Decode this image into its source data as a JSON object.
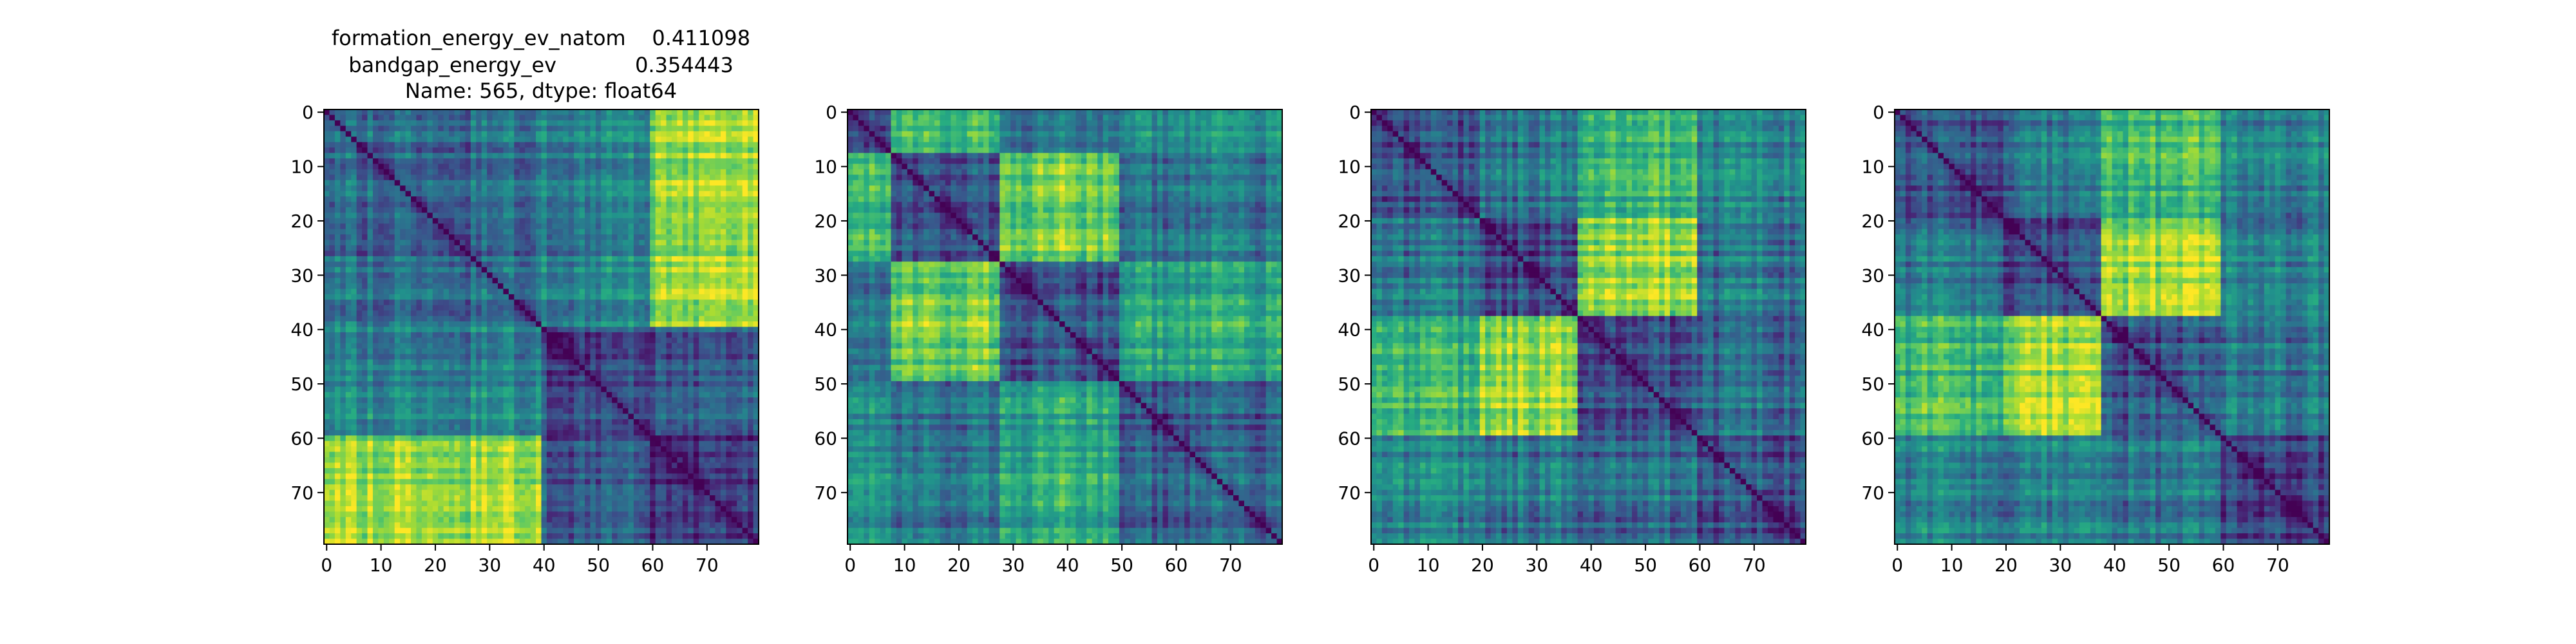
{
  "chart_data": {
    "type": "heatmap",
    "title": [
      "formation_energy_ev_natom    0.411098",
      "bandgap_energy_ev            0.354443",
      "Name: 565, dtype: float64"
    ],
    "xlabel": "",
    "ylabel": "",
    "grid": false,
    "colormap": "viridis",
    "matrix_size": 80,
    "x_ticks": [
      0,
      10,
      20,
      30,
      40,
      50,
      60,
      70
    ],
    "y_ticks": [
      0,
      10,
      20,
      30,
      40,
      50,
      60,
      70
    ],
    "panels": [
      {
        "blocks": [
          0,
          40,
          60,
          80
        ],
        "block_levels": [
          [
            0.35,
            0.45,
            0.85
          ],
          [
            0.45,
            0.25,
            0.3
          ],
          [
            0.85,
            0.3,
            0.18
          ]
        ]
      },
      {
        "blocks": [
          0,
          8,
          28,
          50,
          80
        ],
        "block_levels": [
          [
            0.35,
            0.75,
            0.45,
            0.55
          ],
          [
            0.75,
            0.3,
            0.8,
            0.4
          ],
          [
            0.45,
            0.8,
            0.3,
            0.6
          ],
          [
            0.55,
            0.4,
            0.6,
            0.3
          ]
        ]
      },
      {
        "blocks": [
          0,
          20,
          38,
          60,
          80
        ],
        "block_levels": [
          [
            0.25,
            0.4,
            0.65,
            0.45
          ],
          [
            0.4,
            0.25,
            0.85,
            0.4
          ],
          [
            0.65,
            0.85,
            0.25,
            0.35
          ],
          [
            0.45,
            0.4,
            0.35,
            0.25
          ]
        ]
      },
      {
        "blocks": [
          0,
          20,
          38,
          60,
          80
        ],
        "block_levels": [
          [
            0.25,
            0.4,
            0.65,
            0.45
          ],
          [
            0.4,
            0.25,
            0.85,
            0.45
          ],
          [
            0.65,
            0.85,
            0.25,
            0.4
          ],
          [
            0.45,
            0.45,
            0.4,
            0.25
          ]
        ]
      }
    ]
  }
}
